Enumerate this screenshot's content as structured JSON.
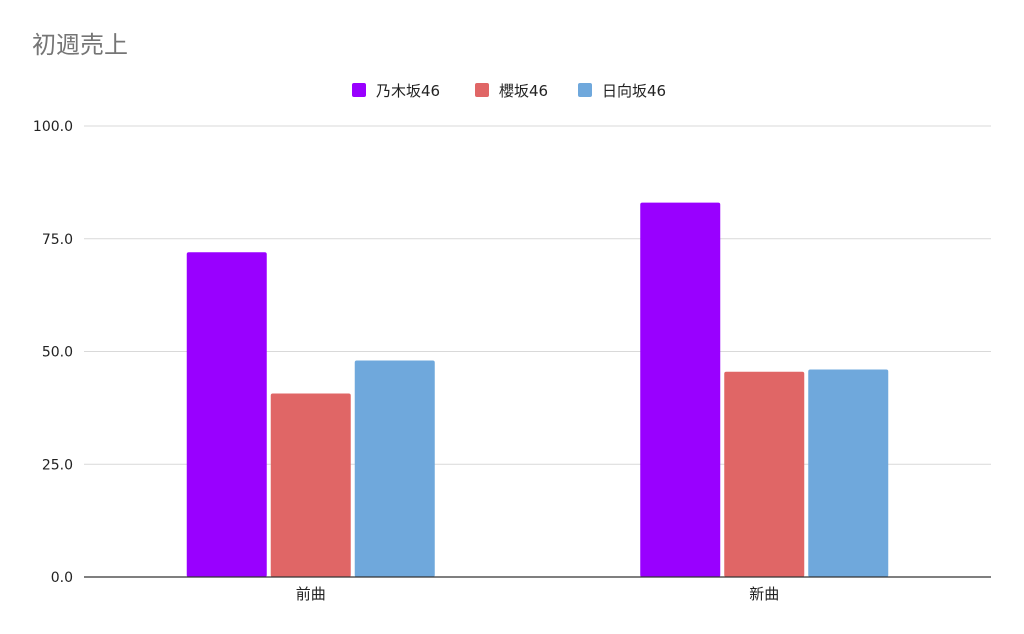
{
  "chart_data": {
    "type": "bar",
    "title": "初週売上",
    "categories": [
      "前曲",
      "新曲"
    ],
    "series": [
      {
        "name": "乃木坂46",
        "color": "#9900ff",
        "values": [
          72.0,
          83.0
        ]
      },
      {
        "name": "櫻坂46",
        "color": "#e06666",
        "values": [
          40.7,
          45.5
        ]
      },
      {
        "name": "日向坂46",
        "color": "#6fa8dc",
        "values": [
          48.0,
          46.0
        ]
      }
    ],
    "ylim": [
      0,
      100
    ],
    "yticks": [
      "0.0",
      "25.0",
      "50.0",
      "75.0",
      "100.0"
    ],
    "grid": true,
    "legend_position": "top-center"
  }
}
